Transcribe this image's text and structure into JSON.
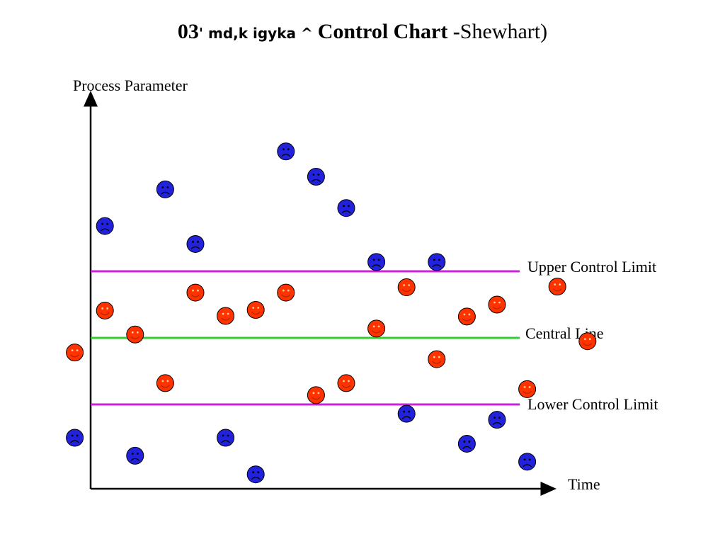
{
  "title": {
    "lead": "03",
    "garble": "' md,k igyka ^ ",
    "main": "Control Chart -",
    "tail": "Shewhart)"
  },
  "chart_data": {
    "type": "scatter",
    "ylabel": "Process Parameter",
    "xlabel": "Time",
    "grid": false,
    "reference_lines": [
      {
        "name": "Upper Control Limit",
        "y": 1,
        "color": "#cc22dd"
      },
      {
        "name": "Central Line",
        "y": 0,
        "color": "#33cc33"
      },
      {
        "name": "Lower Control Limit",
        "y": -1,
        "color": "#cc22dd"
      }
    ],
    "series": [
      {
        "status": "in-control",
        "color": "#ff3300",
        "face": "smile",
        "points": [
          {
            "x": 1,
            "y": -0.22
          },
          {
            "x": 2,
            "y": 0.41
          },
          {
            "x": 3,
            "y": 0.05
          },
          {
            "x": 4,
            "y": -0.68
          },
          {
            "x": 5,
            "y": 0.68
          },
          {
            "x": 6,
            "y": 0.33
          },
          {
            "x": 7,
            "y": 0.42
          },
          {
            "x": 8,
            "y": 0.68
          },
          {
            "x": 9,
            "y": -0.86
          },
          {
            "x": 10,
            "y": -0.68
          },
          {
            "x": 11,
            "y": 0.14
          },
          {
            "x": 12,
            "y": 0.76
          },
          {
            "x": 13,
            "y": -0.32
          },
          {
            "x": 14,
            "y": 0.32
          },
          {
            "x": 15,
            "y": 0.5
          },
          {
            "x": 16,
            "y": -0.77
          },
          {
            "x": 17,
            "y": 0.77
          },
          {
            "x": 18,
            "y": -0.05
          }
        ]
      },
      {
        "status": "out-of-control",
        "color": "#2222dd",
        "face": "frown",
        "points": [
          {
            "x": 1,
            "y": -1.5
          },
          {
            "x": 2,
            "y": 1.68
          },
          {
            "x": 3,
            "y": -1.77
          },
          {
            "x": 4,
            "y": 2.23
          },
          {
            "x": 5,
            "y": 1.41
          },
          {
            "x": 6,
            "y": -1.5
          },
          {
            "x": 7,
            "y": -2.05
          },
          {
            "x": 8,
            "y": 2.8
          },
          {
            "x": 9,
            "y": 2.42
          },
          {
            "x": 10,
            "y": 1.95
          },
          {
            "x": 11,
            "y": 1.14
          },
          {
            "x": 12,
            "y": -1.14
          },
          {
            "x": 13,
            "y": 1.14
          },
          {
            "x": 14,
            "y": -1.59
          },
          {
            "x": 15,
            "y": -1.23
          },
          {
            "x": 16,
            "y": -1.86
          }
        ]
      }
    ]
  }
}
